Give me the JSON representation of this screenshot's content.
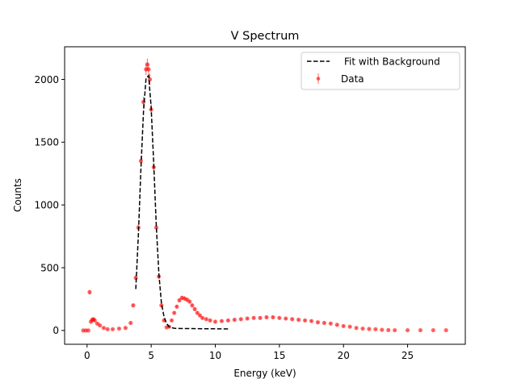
{
  "chart_data": {
    "type": "scatter",
    "title": "V Spectrum",
    "xlabel": "Energy (keV)",
    "ylabel": "Counts",
    "xlim": [
      -1.75,
      29.5
    ],
    "ylim": [
      -110,
      2260
    ],
    "xticks": [
      0,
      5,
      10,
      15,
      20,
      25
    ],
    "yticks": [
      0,
      500,
      1000,
      1500,
      2000
    ],
    "legend_position": "top-right",
    "series": [
      {
        "name": "Fit with Background",
        "kind": "line",
        "style": "dashed",
        "color": "#000000",
        "x": [
          3.8,
          4.0,
          4.2,
          4.4,
          4.6,
          4.8,
          5.0,
          5.2,
          5.4,
          5.6,
          5.8,
          6.0,
          6.2,
          6.4,
          6.6,
          6.8,
          7.0,
          8.0,
          9.0,
          10.0,
          11.0
        ],
        "y": [
          330,
          760,
          1280,
          1740,
          2010,
          2030,
          1780,
          1330,
          830,
          450,
          220,
          110,
          55,
          30,
          22,
          18,
          16,
          15,
          14,
          13,
          12
        ]
      },
      {
        "name": "Data",
        "kind": "scatter",
        "color": "#ff0000",
        "x": [
          -0.3,
          -0.1,
          0.1,
          0.2,
          0.3,
          0.4,
          0.5,
          0.6,
          0.8,
          1.0,
          1.3,
          1.6,
          2.0,
          2.5,
          3.0,
          3.4,
          3.6,
          3.8,
          4.0,
          4.2,
          4.4,
          4.6,
          4.7,
          4.8,
          4.9,
          5.0,
          5.2,
          5.4,
          5.6,
          5.8,
          6.0,
          6.2,
          6.4,
          6.6,
          6.8,
          7.0,
          7.2,
          7.4,
          7.6,
          7.8,
          8.0,
          8.2,
          8.4,
          8.6,
          8.8,
          9.0,
          9.3,
          9.6,
          10.0,
          10.5,
          11.0,
          11.5,
          12.0,
          12.5,
          13.0,
          13.5,
          14.0,
          14.5,
          15.0,
          15.5,
          16.0,
          16.5,
          17.0,
          17.5,
          18.0,
          18.5,
          19.0,
          19.5,
          20.0,
          20.5,
          21.0,
          21.5,
          22.0,
          22.5,
          23.0,
          23.5,
          24.0,
          25.0,
          26.0,
          27.0,
          28.0
        ],
        "y": [
          0,
          0,
          0,
          305,
          70,
          85,
          90,
          80,
          55,
          40,
          20,
          10,
          10,
          15,
          20,
          60,
          200,
          420,
          820,
          1350,
          1820,
          2080,
          2120,
          2080,
          2000,
          1760,
          1300,
          820,
          430,
          200,
          80,
          25,
          30,
          80,
          140,
          190,
          240,
          260,
          255,
          245,
          230,
          200,
          170,
          140,
          120,
          100,
          90,
          80,
          70,
          75,
          80,
          85,
          90,
          95,
          100,
          100,
          105,
          105,
          100,
          95,
          90,
          85,
          80,
          75,
          65,
          60,
          55,
          45,
          35,
          30,
          20,
          15,
          12,
          10,
          5,
          3,
          2,
          2,
          2,
          2,
          2
        ]
      }
    ]
  }
}
